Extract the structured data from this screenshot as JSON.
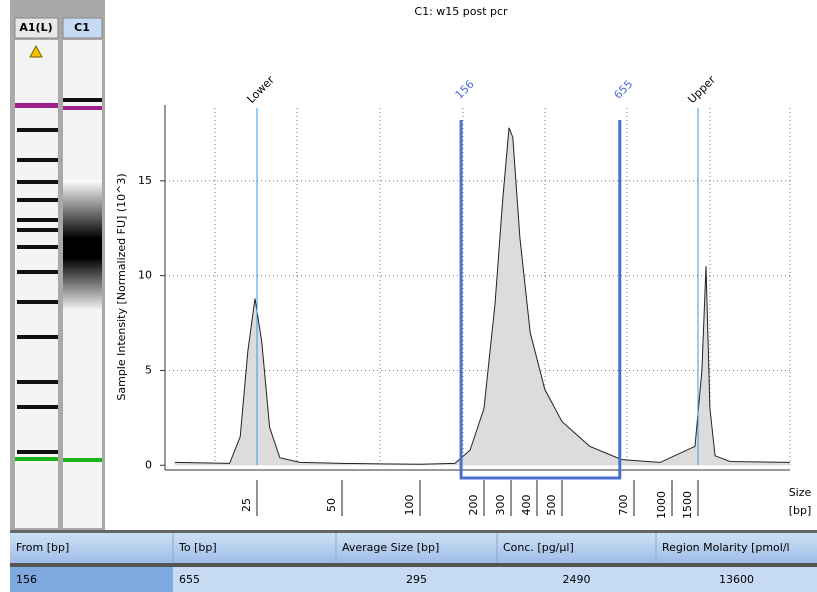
{
  "lanes": [
    {
      "label": "A1(L)"
    },
    {
      "label": "C1"
    }
  ],
  "chart_data": {
    "type": "area",
    "title": "C1: w15 post pcr",
    "ylabel": "Sample Intensity [Normalized FU] (10^3)",
    "xlabel": "Size",
    "xlabel_unit": "[bp]",
    "xticks": [
      25,
      50,
      100,
      200,
      300,
      400,
      500,
      700,
      1000,
      1500
    ],
    "ylim": [
      -0.25,
      19
    ],
    "yticks": [
      0,
      5,
      10,
      15
    ],
    "grid": true,
    "markers": [
      {
        "label": "Lower",
        "x": 25
      },
      {
        "label": "Upper",
        "x": 1500
      }
    ],
    "region": {
      "from": 156,
      "to": 655,
      "color": "#4a6fd0"
    },
    "series": [
      {
        "name": "C1",
        "color": "#dcdcdc",
        "x": [
          12.8,
          20.0,
          21.8,
          23.2,
          24.6,
          26.0,
          27.7,
          30.1,
          35.5,
          50,
          100,
          146,
          172,
          200,
          236,
          265,
          291,
          306,
          331,
          371,
          429,
          500,
          569,
          661,
          895,
          1432,
          1595,
          1700,
          1807,
          1958,
          2470,
          6300
        ],
        "values": [
          0.15,
          0.1,
          1.5,
          6,
          8.8,
          6.5,
          2,
          0.4,
          0.15,
          0.1,
          0.05,
          0.1,
          0.8,
          3,
          8.5,
          14,
          17.8,
          17.3,
          12,
          7,
          4,
          2.3,
          1,
          0.3,
          0.15,
          1.0,
          5,
          10.5,
          3,
          0.5,
          0.2,
          0.15
        ]
      }
    ]
  },
  "table": {
    "headers": [
      "From [bp]",
      "To [bp]",
      "Average Size [bp]",
      "Conc. [pg/µl]",
      "Region Molarity [pmol/l"
    ],
    "rows": [
      [
        156,
        655,
        295,
        2490,
        13600
      ]
    ]
  }
}
